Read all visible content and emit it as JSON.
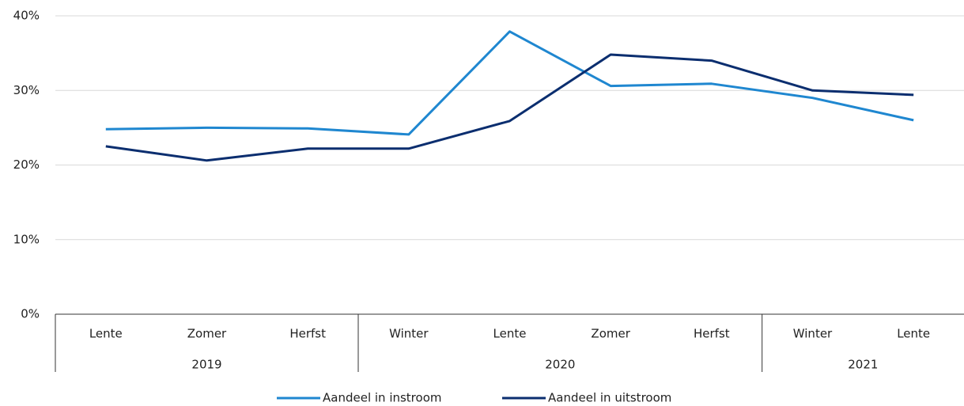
{
  "chart_data": {
    "type": "line",
    "categories": [
      "Lente",
      "Zomer",
      "Herfst",
      "Winter",
      "Lente",
      "Zomer",
      "Herfst",
      "Winter",
      "Lente"
    ],
    "x_groups": [
      {
        "label": "2019",
        "span": 3
      },
      {
        "label": "2020",
        "span": 4
      },
      {
        "label": "2021",
        "span": 2
      }
    ],
    "series": [
      {
        "name": "Aandeel in instroom",
        "color": "#1f87d0",
        "values": [
          24.8,
          25.0,
          24.9,
          24.1,
          37.9,
          30.6,
          30.9,
          29.0,
          26.0
        ]
      },
      {
        "name": "Aandeel in uitstroom",
        "color": "#0b2e6f",
        "values": [
          22.5,
          20.6,
          22.2,
          22.2,
          25.9,
          34.8,
          34.0,
          30.0,
          29.4
        ]
      }
    ],
    "ylim": [
      0,
      40
    ],
    "yticks": [
      {
        "value": 0,
        "label": "0%"
      },
      {
        "value": 10,
        "label": "10%"
      },
      {
        "value": 20,
        "label": "20%"
      },
      {
        "value": 30,
        "label": "30%"
      },
      {
        "value": 40,
        "label": "40%"
      }
    ],
    "grid": true,
    "legend": "bottom"
  }
}
